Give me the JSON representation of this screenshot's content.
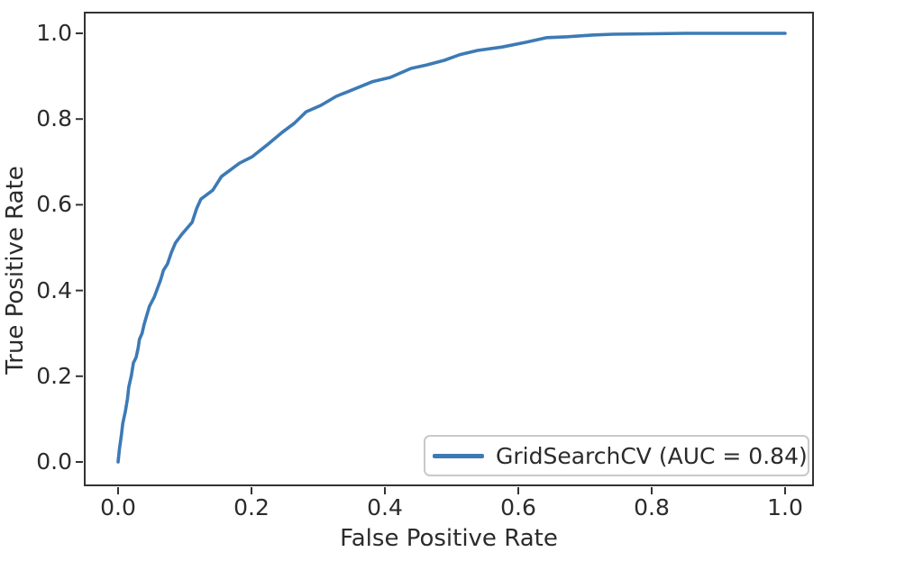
{
  "window": {
    "background": "#ffffff"
  },
  "styles": {
    "curve_color": "#3d7ab5",
    "text_color": "#2b2b2b",
    "spine_color": "#333333",
    "legend_border_color": "#c9c9c9",
    "legend_background": "#ffffff"
  },
  "chart_data": {
    "type": "line",
    "title": "",
    "xlabel": "False Positive Rate",
    "ylabel": "True Positive Rate",
    "xlim": [
      -0.05,
      1.05
    ],
    "ylim": [
      -0.05,
      1.05
    ],
    "grid": false,
    "x_ticks": {
      "values": [
        0.0,
        0.2,
        0.4,
        0.6,
        0.8,
        1.0
      ],
      "labels": [
        "0.0",
        "0.2",
        "0.4",
        "0.6",
        "0.8",
        "1.0"
      ]
    },
    "y_ticks": {
      "values": [
        0.0,
        0.2,
        0.4,
        0.6,
        0.8,
        1.0
      ],
      "labels": [
        "0.0",
        "0.2",
        "0.4",
        "0.6",
        "0.8",
        "1.0"
      ]
    },
    "legend": {
      "position": "lower right",
      "entries": [
        "GridSearchCV (AUC = 0.84)"
      ]
    },
    "series": [
      {
        "name": "GridSearchCV (AUC = 0.84)",
        "auc": 0.84,
        "color": "#3d7ab5",
        "points": [
          [
            0.0,
            0.0
          ],
          [
            0.002,
            0.03
          ],
          [
            0.005,
            0.063
          ],
          [
            0.007,
            0.09
          ],
          [
            0.011,
            0.118
          ],
          [
            0.014,
            0.147
          ],
          [
            0.016,
            0.174
          ],
          [
            0.02,
            0.202
          ],
          [
            0.023,
            0.231
          ],
          [
            0.027,
            0.244
          ],
          [
            0.03,
            0.265
          ],
          [
            0.032,
            0.286
          ],
          [
            0.036,
            0.3
          ],
          [
            0.039,
            0.321
          ],
          [
            0.043,
            0.342
          ],
          [
            0.047,
            0.363
          ],
          [
            0.054,
            0.384
          ],
          [
            0.059,
            0.405
          ],
          [
            0.064,
            0.426
          ],
          [
            0.068,
            0.447
          ],
          [
            0.074,
            0.462
          ],
          [
            0.08,
            0.489
          ],
          [
            0.086,
            0.511
          ],
          [
            0.095,
            0.53
          ],
          [
            0.111,
            0.559
          ],
          [
            0.118,
            0.592
          ],
          [
            0.124,
            0.613
          ],
          [
            0.142,
            0.634
          ],
          [
            0.155,
            0.666
          ],
          [
            0.182,
            0.697
          ],
          [
            0.201,
            0.712
          ],
          [
            0.223,
            0.739
          ],
          [
            0.246,
            0.769
          ],
          [
            0.264,
            0.79
          ],
          [
            0.282,
            0.817
          ],
          [
            0.304,
            0.832
          ],
          [
            0.327,
            0.853
          ],
          [
            0.354,
            0.87
          ],
          [
            0.381,
            0.887
          ],
          [
            0.408,
            0.897
          ],
          [
            0.439,
            0.918
          ],
          [
            0.462,
            0.926
          ],
          [
            0.489,
            0.937
          ],
          [
            0.512,
            0.95
          ],
          [
            0.539,
            0.96
          ],
          [
            0.576,
            0.968
          ],
          [
            0.611,
            0.979
          ],
          [
            0.643,
            0.99
          ],
          [
            0.674,
            0.992
          ],
          [
            0.711,
            0.996
          ],
          [
            0.742,
            0.998
          ],
          [
            0.8,
            0.999
          ],
          [
            0.85,
            1.0
          ],
          [
            0.9,
            1.0
          ],
          [
            1.0,
            1.0
          ]
        ]
      }
    ]
  }
}
